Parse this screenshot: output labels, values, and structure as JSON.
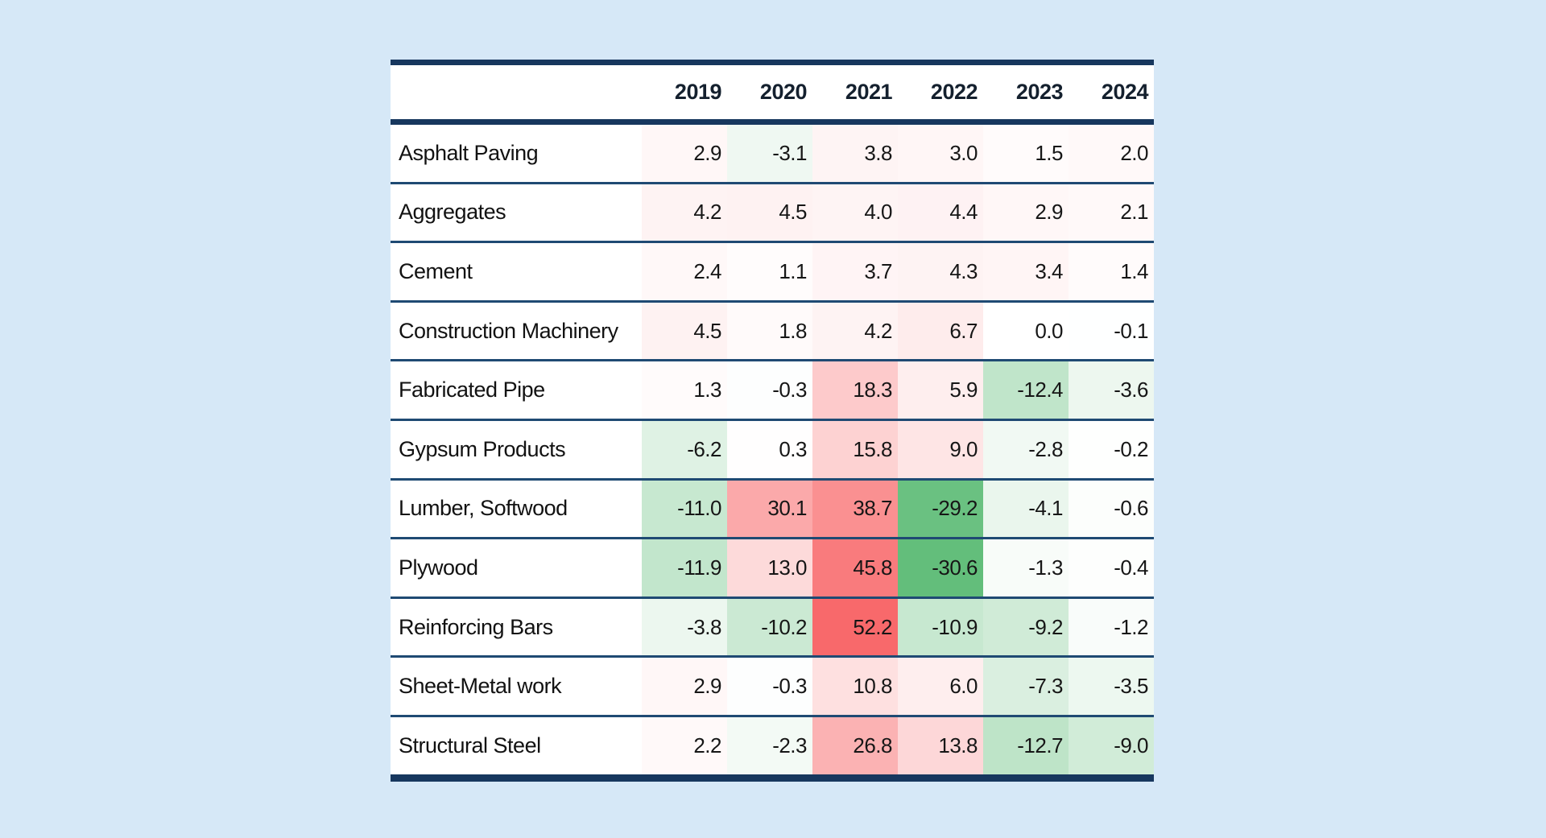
{
  "page": {
    "background_color": "#d6e8f7"
  },
  "table": {
    "style": {
      "border_color": "#17375E",
      "separator_color": "#1F4A73",
      "cell_text_color": "#161616",
      "row_background": "#FFFFFF"
    }
  },
  "chart_data": {
    "type": "heatmap",
    "title": "",
    "xlabel": "",
    "ylabel": "",
    "x_categories": [
      "2019",
      "2020",
      "2021",
      "2022",
      "2023",
      "2024"
    ],
    "y_categories": [
      "Asphalt Paving",
      "Aggregates",
      "Cement",
      "Construction Machinery",
      "Fabricated Pipe",
      "Gypsum Products",
      "Lumber, Softwood",
      "Plywood",
      "Reinforcing Bars",
      "Sheet-Metal work",
      "Structural Steel"
    ],
    "series": [
      {
        "name": "Asphalt Paving",
        "values": [
          2.9,
          -3.1,
          3.8,
          3.0,
          1.5,
          2.0
        ]
      },
      {
        "name": "Aggregates",
        "values": [
          4.2,
          4.5,
          4.0,
          4.4,
          2.9,
          2.1
        ]
      },
      {
        "name": "Cement",
        "values": [
          2.4,
          1.1,
          3.7,
          4.3,
          3.4,
          1.4
        ]
      },
      {
        "name": "Construction Machinery",
        "values": [
          4.5,
          1.8,
          4.2,
          6.7,
          0.0,
          -0.1
        ]
      },
      {
        "name": "Fabricated Pipe",
        "values": [
          1.3,
          -0.3,
          18.3,
          5.9,
          -12.4,
          -3.6
        ]
      },
      {
        "name": "Gypsum Products",
        "values": [
          -6.2,
          0.3,
          15.8,
          9.0,
          -2.8,
          -0.2
        ]
      },
      {
        "name": "Lumber, Softwood",
        "values": [
          -11.0,
          30.1,
          38.7,
          -29.2,
          -4.1,
          -0.6
        ]
      },
      {
        "name": "Plywood",
        "values": [
          -11.9,
          13.0,
          45.8,
          -30.6,
          -1.3,
          -0.4
        ]
      },
      {
        "name": "Reinforcing Bars",
        "values": [
          -3.8,
          -10.2,
          52.2,
          -10.9,
          -9.2,
          -1.2
        ]
      },
      {
        "name": "Sheet-Metal work",
        "values": [
          2.9,
          -0.3,
          10.8,
          6.0,
          -7.3,
          -3.5
        ]
      },
      {
        "name": "Structural Steel",
        "values": [
          2.2,
          -2.3,
          26.8,
          13.8,
          -12.7,
          -9.0
        ]
      }
    ],
    "colormap": {
      "type": "diverging",
      "min_value": -30.6,
      "mid_value": 0,
      "max_value": 52.2,
      "min_color": "#63BE7B",
      "mid_color": "#FFFFFF",
      "max_color": "#F8696B"
    },
    "value_decimals": 1,
    "legend": "none",
    "grid": "horizontal-row-separators"
  }
}
